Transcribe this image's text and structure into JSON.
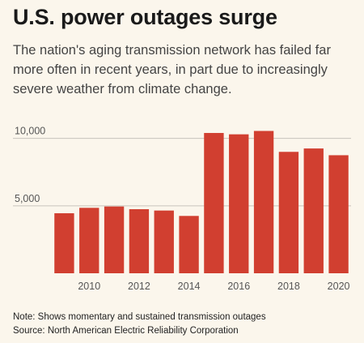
{
  "header": {
    "title": "U.S. power outages surge",
    "subtitle": "The nation's aging transmission network has failed far more often in recent years, in part due to increasingly severe weather from climate change."
  },
  "footer": {
    "note": "Note: Shows momentary and sustained transmission outages",
    "source": "Source: North American Electric Reliability Corporation"
  },
  "chart_data": {
    "type": "bar",
    "x": [
      2009,
      2010,
      2011,
      2012,
      2013,
      2014,
      2015,
      2016,
      2017,
      2018,
      2019,
      2020
    ],
    "values": [
      4450,
      4850,
      4950,
      4750,
      4650,
      4250,
      10400,
      10300,
      10550,
      9000,
      9250,
      8750
    ],
    "yticks": [
      5000,
      10000
    ],
    "ytick_labels": [
      "5,000",
      "10,000"
    ],
    "xticks": [
      2010,
      2012,
      2014,
      2016,
      2018,
      2020
    ],
    "xtick_labels": [
      "2010",
      "2012",
      "2014",
      "2016",
      "2018",
      "2020"
    ],
    "ylim": [
      0,
      11000
    ],
    "grid": true,
    "bar_color": "#d13f30",
    "xlabel": "",
    "ylabel": ""
  }
}
